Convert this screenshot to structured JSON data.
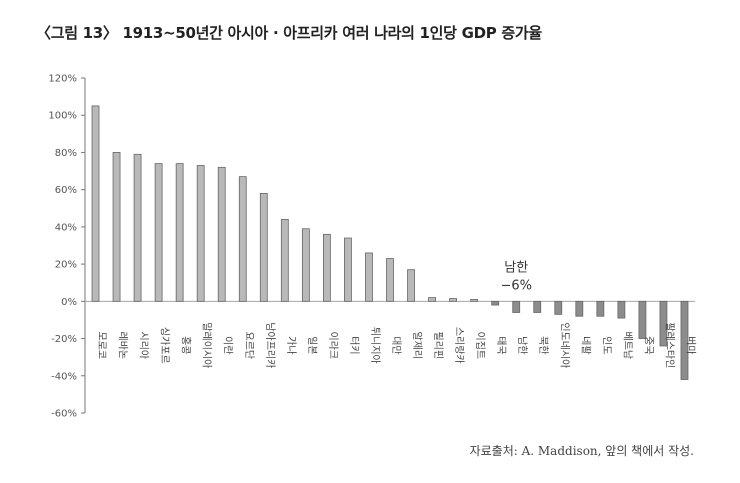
{
  "title": "〈그림 13〉 1913~50년간 아시아 · 아프리카 여러 나라의 1인당 GDP 증가율",
  "source": "자료출처: A. Maddison, 앞의 책에서 작성.",
  "chart_data": {
    "type": "bar",
    "categories": [
      "모로코",
      "레바논",
      "시리아",
      "싱가포르",
      "홍콩",
      "말레이시아",
      "이란",
      "요르단",
      "남아프리카",
      "가나",
      "일본",
      "이라크",
      "터키",
      "튀니지아",
      "대만",
      "알제리",
      "필리핀",
      "스리랑카",
      "이집트",
      "태국",
      "남한",
      "북한",
      "인도네시아",
      "네팔",
      "인도",
      "베트남",
      "중국",
      "팔레스타인",
      "버마"
    ],
    "values": [
      105,
      80,
      79,
      74,
      74,
      73,
      72,
      67,
      58,
      44,
      39,
      36,
      34,
      26,
      23,
      17,
      2,
      1.5,
      1,
      -2,
      -6,
      -6,
      -7,
      -8,
      -8,
      -9,
      -20,
      -24,
      -42
    ],
    "ylim": [
      -60,
      120
    ],
    "yticks": [
      120,
      100,
      80,
      60,
      40,
      20,
      0,
      -20,
      -40,
      -60
    ],
    "ytick_labels": [
      "120%",
      "100%",
      "80%",
      "60%",
      "40%",
      "20%",
      "0%",
      "-20%",
      "-40%",
      "-60%"
    ],
    "annotation": {
      "category": "남한",
      "line1": "남한",
      "line2": "−6%"
    },
    "bar_color": "#b9b9b9",
    "highlight_color": "#8c8c8c",
    "grid": false
  }
}
